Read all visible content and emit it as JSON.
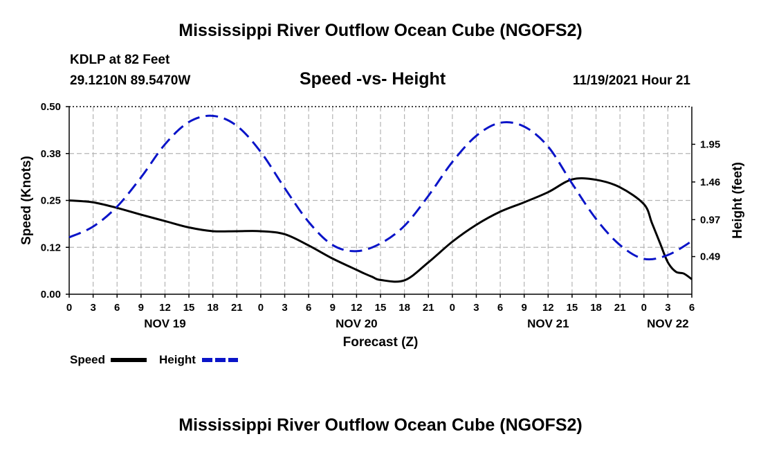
{
  "header": {
    "title": "Mississippi River Outflow Ocean Cube (NGOFS2)",
    "station": "KDLP at 82 Feet",
    "coords": "29.1210N  89.5470W",
    "subtitle": "Speed -vs- Height",
    "datetime": "11/19/2021 Hour 21"
  },
  "footer_title": "Mississippi River Outflow Ocean Cube (NGOFS2)",
  "colors": {
    "speed": "#000000",
    "height": "#0a14c8",
    "grid": "#b4b4b4"
  },
  "chart_data": {
    "type": "line",
    "title": "Speed -vs- Height",
    "xlabel": "Forecast (Z)",
    "ylabel": "Speed (Knots)",
    "y2label": "Height (feet)",
    "x_range_hours": [
      0,
      78
    ],
    "x_tick_step_hours": 3,
    "x_tick_labels": [
      "0",
      "3",
      "6",
      "9",
      "12",
      "15",
      "18",
      "21",
      "0",
      "3",
      "6",
      "9",
      "12",
      "15",
      "18",
      "21",
      "0",
      "3",
      "6",
      "9",
      "12",
      "15",
      "18",
      "21",
      "0",
      "3",
      "6"
    ],
    "date_labels": [
      {
        "label": "NOV 19",
        "hour": 12
      },
      {
        "label": "NOV 20",
        "hour": 36
      },
      {
        "label": "NOV 21",
        "hour": 60
      },
      {
        "label": "NOV 22",
        "hour": 75
      }
    ],
    "y_left": {
      "range": [
        0.0,
        0.5
      ],
      "ticks": [
        0.0,
        0.125,
        0.25,
        0.375,
        0.5
      ],
      "tick_labels": [
        "0.00",
        "0.12",
        "0.25",
        "0.38",
        "0.50"
      ]
    },
    "y_right": {
      "range": [
        0.0,
        2.44
      ],
      "ticks": [
        0.49,
        0.97,
        1.46,
        1.95
      ],
      "tick_labels": [
        "0.49",
        "0.97",
        "1.46",
        "1.95"
      ]
    },
    "legend": [
      {
        "name": "Speed",
        "color": "#000000",
        "dash": "solid"
      },
      {
        "name": "Height",
        "color": "#0a14c8",
        "dash": "dashed"
      }
    ],
    "series": [
      {
        "name": "Speed",
        "axis": "left",
        "x": [
          0,
          3,
          6,
          9,
          12,
          15,
          18,
          21,
          24,
          27,
          30,
          33,
          36,
          37,
          38,
          39,
          42,
          45,
          48,
          51,
          54,
          57,
          60,
          63,
          66,
          69,
          72,
          73,
          74,
          75,
          76,
          77,
          78
        ],
        "y": [
          0.25,
          0.245,
          0.23,
          0.212,
          0.195,
          0.178,
          0.168,
          0.168,
          0.168,
          0.16,
          0.13,
          0.095,
          0.065,
          0.055,
          0.046,
          0.038,
          0.037,
          0.085,
          0.14,
          0.185,
          0.22,
          0.245,
          0.272,
          0.306,
          0.305,
          0.285,
          0.24,
          0.19,
          0.137,
          0.085,
          0.06,
          0.055,
          0.04
        ]
      },
      {
        "name": "Height",
        "axis": "right",
        "x": [
          0,
          3,
          6,
          9,
          12,
          15,
          18,
          21,
          24,
          27,
          30,
          33,
          36,
          39,
          42,
          45,
          48,
          51,
          54,
          57,
          60,
          63,
          66,
          69,
          72,
          75,
          78
        ],
        "y": [
          0.74,
          0.88,
          1.14,
          1.52,
          1.95,
          2.24,
          2.32,
          2.19,
          1.85,
          1.38,
          0.94,
          0.64,
          0.56,
          0.66,
          0.89,
          1.28,
          1.72,
          2.06,
          2.23,
          2.18,
          1.92,
          1.44,
          0.98,
          0.64,
          0.46,
          0.51,
          0.69
        ]
      }
    ]
  }
}
